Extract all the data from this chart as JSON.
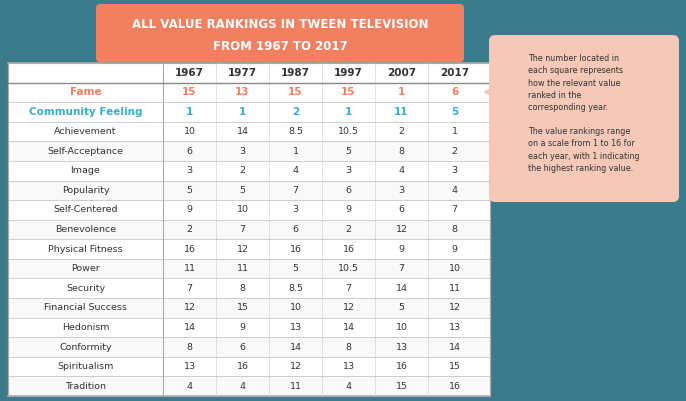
{
  "title_line1": "ALL VALUE RANKINGS IN TWEEN TELEVISION",
  "title_line2": "FROM 1967 TO 2017",
  "title_bg_color": "#F08060",
  "bg_color": "#3A7A8A",
  "table_bg": "#FFFFFF",
  "years": [
    "1967",
    "1977",
    "1987",
    "1997",
    "2007",
    "2017"
  ],
  "rows": [
    {
      "label": "Fame",
      "values": [
        "15",
        "13",
        "15",
        "15",
        "1",
        "6"
      ],
      "label_color": "#F08060",
      "value_color": "#F08060",
      "bold": true,
      "bg": "#FFFFFF"
    },
    {
      "label": "Community Feeling",
      "values": [
        "1",
        "1",
        "2",
        "1",
        "11",
        "5"
      ],
      "label_color": "#3AADCC",
      "value_color": "#3AADCC",
      "bold": true,
      "bg": "#FFFFFF"
    },
    {
      "label": "Achievement",
      "values": [
        "10",
        "14",
        "8.5",
        "10.5",
        "2",
        "1"
      ],
      "label_color": "#333333",
      "value_color": "#333333",
      "bold": false,
      "bg": "#FFFFFF"
    },
    {
      "label": "Self-Acceptance",
      "values": [
        "6",
        "3",
        "1",
        "5",
        "8",
        "2"
      ],
      "label_color": "#333333",
      "value_color": "#333333",
      "bold": false,
      "bg": "#F9F9F9"
    },
    {
      "label": "Image",
      "values": [
        "3",
        "2",
        "4",
        "3",
        "4",
        "3"
      ],
      "label_color": "#333333",
      "value_color": "#333333",
      "bold": false,
      "bg": "#FFFFFF"
    },
    {
      "label": "Popularity",
      "values": [
        "5",
        "5",
        "7",
        "6",
        "3",
        "4"
      ],
      "label_color": "#333333",
      "value_color": "#333333",
      "bold": false,
      "bg": "#F9F9F9"
    },
    {
      "label": "Self-Centered",
      "values": [
        "9",
        "10",
        "3",
        "9",
        "6",
        "7"
      ],
      "label_color": "#333333",
      "value_color": "#333333",
      "bold": false,
      "bg": "#FFFFFF"
    },
    {
      "label": "Benevolence",
      "values": [
        "2",
        "7",
        "6",
        "2",
        "12",
        "8"
      ],
      "label_color": "#333333",
      "value_color": "#333333",
      "bold": false,
      "bg": "#F9F9F9"
    },
    {
      "label": "Physical Fitness",
      "values": [
        "16",
        "12",
        "16",
        "16",
        "9",
        "9"
      ],
      "label_color": "#333333",
      "value_color": "#333333",
      "bold": false,
      "bg": "#FFFFFF"
    },
    {
      "label": "Power",
      "values": [
        "11",
        "11",
        "5",
        "10.5",
        "7",
        "10"
      ],
      "label_color": "#333333",
      "value_color": "#333333",
      "bold": false,
      "bg": "#F9F9F9"
    },
    {
      "label": "Security",
      "values": [
        "7",
        "8",
        "8.5",
        "7",
        "14",
        "11"
      ],
      "label_color": "#333333",
      "value_color": "#333333",
      "bold": false,
      "bg": "#FFFFFF"
    },
    {
      "label": "Financial Success",
      "values": [
        "12",
        "15",
        "10",
        "12",
        "5",
        "12"
      ],
      "label_color": "#333333",
      "value_color": "#333333",
      "bold": false,
      "bg": "#F9F9F9"
    },
    {
      "label": "Hedonism",
      "values": [
        "14",
        "9",
        "13",
        "14",
        "10",
        "13"
      ],
      "label_color": "#333333",
      "value_color": "#333333",
      "bold": false,
      "bg": "#FFFFFF"
    },
    {
      "label": "Conformity",
      "values": [
        "8",
        "6",
        "14",
        "8",
        "13",
        "14"
      ],
      "label_color": "#333333",
      "value_color": "#333333",
      "bold": false,
      "bg": "#F9F9F9"
    },
    {
      "label": "Spiritualism",
      "values": [
        "13",
        "16",
        "12",
        "13",
        "16",
        "15"
      ],
      "label_color": "#333333",
      "value_color": "#333333",
      "bold": false,
      "bg": "#FFFFFF"
    },
    {
      "label": "Tradition",
      "values": [
        "4",
        "4",
        "11",
        "4",
        "15",
        "16"
      ],
      "label_color": "#333333",
      "value_color": "#333333",
      "bold": false,
      "bg": "#F9F9F9"
    }
  ],
  "annotation_text": "The number located in\neach square represents\nhow the relevant value\nranked in the\ncorresponding year.\n\nThe value rankings range\non a scale from 1 to 16 for\neach year, with 1 indicating\nthe highest ranking value.",
  "annotation_bg": "#F5C8B8",
  "header_color": "#333333"
}
